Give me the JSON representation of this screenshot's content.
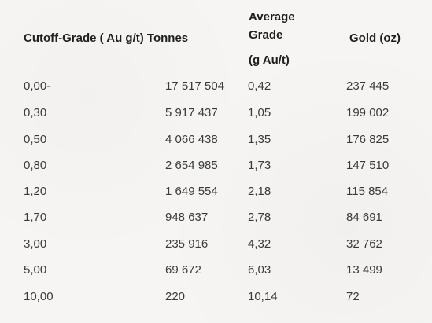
{
  "table": {
    "headers": {
      "cutoff_tonnes": "Cutoff-Grade ( Au g/t) Tonnes",
      "average_line1": "Average",
      "average_line2": "Grade",
      "average_line3": "(g Au/t)",
      "gold": "Gold (oz)"
    },
    "rows": [
      {
        "cutoff": "0,00-",
        "tonnes": "17 517 504",
        "grade": "0,42",
        "gold": "237 445"
      },
      {
        "cutoff": "0,30",
        "tonnes": "5 917 437",
        "grade": "1,05",
        "gold": "199 002"
      },
      {
        "cutoff": "0,50",
        "tonnes": "4 066 438",
        "grade": "1,35",
        "gold": "176 825"
      },
      {
        "cutoff": "0,80",
        "tonnes": "2 654 985",
        "grade": "1,73",
        "gold": "147 510"
      },
      {
        "cutoff": "1,20",
        "tonnes": "1 649 554",
        "grade": "2,18",
        "gold": "115 854"
      },
      {
        "cutoff": "1,70",
        "tonnes": "948 637",
        "grade": "2,78",
        "gold": "84 691"
      },
      {
        "cutoff": "3,00",
        "tonnes": "235 916",
        "grade": "4,32",
        "gold": "32 762"
      },
      {
        "cutoff": "5,00",
        "tonnes": "69 672",
        "grade": "6,03",
        "gold": "13 499"
      },
      {
        "cutoff": "10,00",
        "tonnes": "220",
        "grade": "10,14",
        "gold": "72"
      }
    ]
  }
}
